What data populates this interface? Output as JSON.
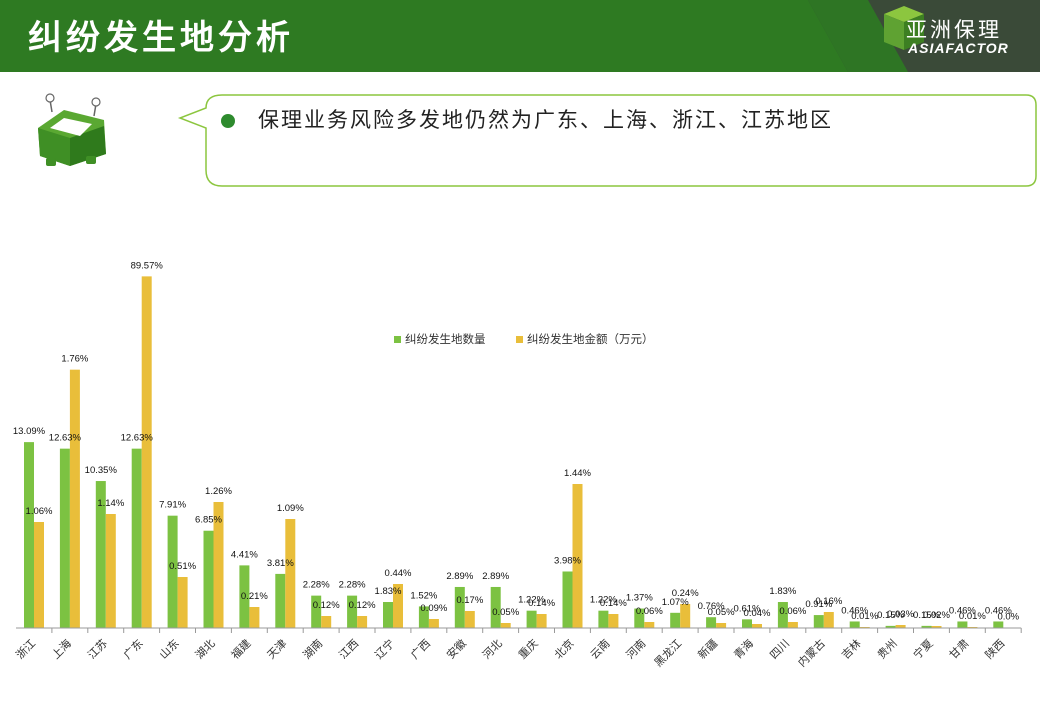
{
  "header": {
    "title": "纠纷发生地分析",
    "logo_cn": "亚洲保理",
    "logo_en": "ASIAFACTOR"
  },
  "callout": {
    "text": "保理业务风险多发地仍然为广东、上海、浙江、江苏地区"
  },
  "colors": {
    "header_green": "#2e7a22",
    "series_count": "#7cc242",
    "series_amount": "#e9be3a",
    "bullet": "#2e8b2e"
  },
  "icons": [
    "mascot-icon",
    "bullet-dot-icon",
    "logo-cube-icon"
  ],
  "chart_data": {
    "type": "bar",
    "categories": [
      "浙江",
      "上海",
      "江苏",
      "广东",
      "山东",
      "湖北",
      "福建",
      "天津",
      "湖南",
      "江西",
      "辽宁",
      "广西",
      "安徽",
      "河北",
      "重庆",
      "北京",
      "云南",
      "河南",
      "黑龙江",
      "新疆",
      "青海",
      "四川",
      "内蒙古",
      "吉林",
      "贵州",
      "宁夏",
      "甘肃",
      "陕西"
    ],
    "series": [
      {
        "name": "纠纷发生地数量",
        "values": [
          13.09,
          12.63,
          10.35,
          12.63,
          7.91,
          6.85,
          4.41,
          3.81,
          2.28,
          2.28,
          1.83,
          1.52,
          2.89,
          2.89,
          1.22,
          3.98,
          1.22,
          1.37,
          1.07,
          0.76,
          0.61,
          1.83,
          0.91,
          0.46,
          0.15,
          0.15,
          0.46,
          0.46
        ],
        "labels": [
          "13.09%",
          "12.63%",
          "10.35%",
          "12.63%",
          "7.91%",
          "6.85%",
          "4.41%",
          "3.81%",
          "2.28%",
          "2.28%",
          "1.83%",
          "1.52%",
          "2.89%",
          "2.89%",
          "1.22%",
          "3.98%",
          "1.22%",
          "1.37%",
          "1.07%",
          "0.76%",
          "0.61%",
          "1.83%",
          "0.91%",
          "0.46%",
          "0.15%",
          "0.15%",
          "0.46%",
          "0.46%"
        ]
      },
      {
        "name": "纠纷发生地金额（万元）",
        "values": [
          1.06,
          1.76,
          1.14,
          89.57,
          0.51,
          1.26,
          0.21,
          1.09,
          0.12,
          0.12,
          0.44,
          0.09,
          0.17,
          0.05,
          0.14,
          1.44,
          0.14,
          0.06,
          0.24,
          0.05,
          0.04,
          0.06,
          0.16,
          0.01,
          0.03,
          0.02,
          0.01,
          0.0
        ],
        "labels": [
          "1.06%",
          "1.76%",
          "1.14%",
          "89.57%",
          "0.51%",
          "1.26%",
          "0.21%",
          "1.09%",
          "0.12%",
          "0.12%",
          "0.44%",
          "0.09%",
          "0.17%",
          "0.05%",
          "0.14%",
          "1.44%",
          "0.14%",
          "0.06%",
          "0.24%",
          "0.05%",
          "0.04%",
          "0.06%",
          "0.16%",
          "0.01%",
          "0.03%",
          "0.02%",
          "0.01%",
          "0.0%"
        ]
      }
    ],
    "legend_position": "center",
    "grid": false
  }
}
